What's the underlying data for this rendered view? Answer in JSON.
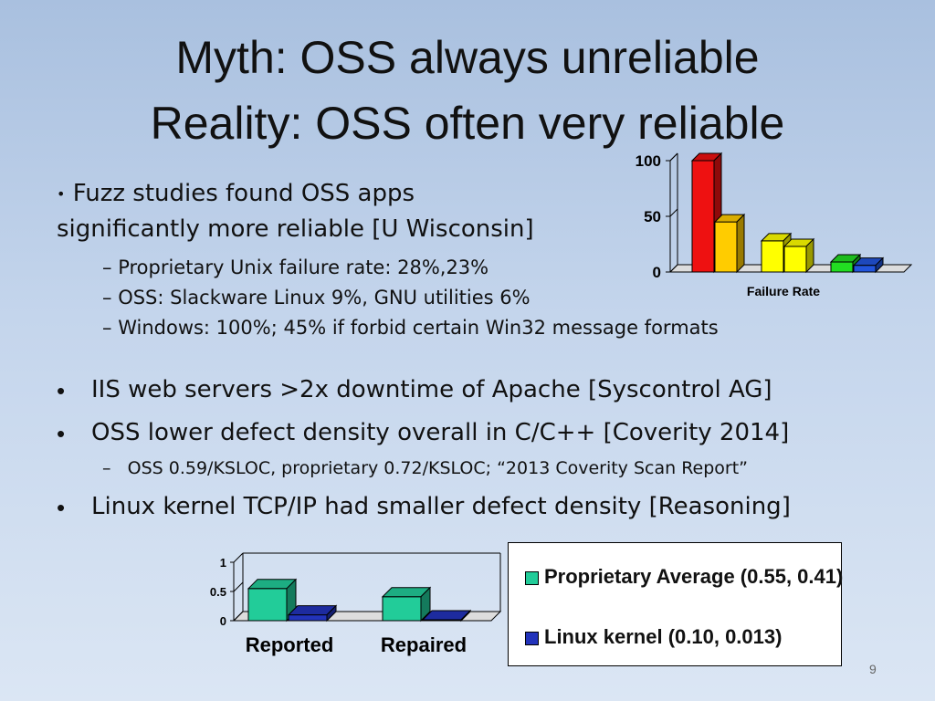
{
  "slide": {
    "title_line1": "Myth: OSS always unreliable",
    "title_line2": "Reality: OSS often very reliable",
    "page_number": "9"
  },
  "bullets": {
    "b1_line1": "Fuzz studies found OSS apps",
    "b1_line2": "significantly more reliable [U Wisconsin]",
    "b1_sub1": "Proprietary Unix failure rate: 28%,23%",
    "b1_sub2": "OSS: Slackware Linux 9%, GNU utilities 6%",
    "b1_sub3": "Windows: 100%; 45% if forbid certain Win32 message formats",
    "b2": "IIS web servers >2x downtime of Apache [Syscontrol AG]",
    "b3": "OSS lower defect density overall in C/C++ [Coverity 2014]",
    "b3_sub1": "OSS 0.59/KSLOC, proprietary 0.72/KSLOC; “2013 Coverity Scan Report”",
    "b4": "Linux kernel TCP/IP had smaller defect density [Reasoning]"
  },
  "chart_data": [
    {
      "type": "bar",
      "xlabel": "Failure Rate",
      "ylim": [
        0,
        100
      ],
      "yticks": [
        "0",
        "50",
        "100"
      ],
      "values": [
        100,
        45,
        28,
        23,
        9,
        6
      ],
      "colors": [
        "#ee1111",
        "#ffcc00",
        "#ffff00",
        "#ffff00",
        "#22dd22",
        "#2255dd"
      ],
      "grid": false,
      "legend": "none"
    },
    {
      "type": "bar",
      "categories": [
        "Reported",
        "Repaired"
      ],
      "ylim": [
        0,
        1
      ],
      "yticks": [
        "0",
        "0.5",
        "1"
      ],
      "series": [
        {
          "name": "Proprietary Average (0.55, 0.41)",
          "values": [
            0.55,
            0.41
          ],
          "color": "#22cc99"
        },
        {
          "name": "Linux kernel (0.10, 0.013)",
          "values": [
            0.1,
            0.013
          ],
          "color": "#2233bb"
        }
      ],
      "grid": false,
      "legend": "right"
    }
  ]
}
